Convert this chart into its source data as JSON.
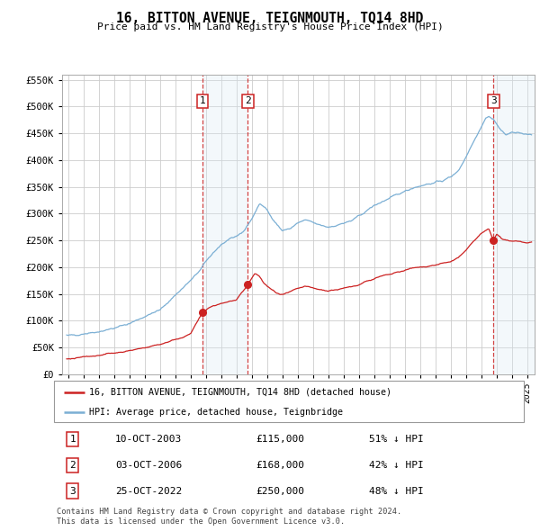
{
  "title": "16, BITTON AVENUE, TEIGNMOUTH, TQ14 8HD",
  "subtitle": "Price paid vs. HM Land Registry's House Price Index (HPI)",
  "background_color": "#ffffff",
  "plot_bg_color": "#ffffff",
  "grid_color": "#cccccc",
  "hpi_color": "#7bafd4",
  "price_color": "#cc2222",
  "legend_label_price": "16, BITTON AVENUE, TEIGNMOUTH, TQ14 8HD (detached house)",
  "legend_label_hpi": "HPI: Average price, detached house, Teignbridge",
  "transactions": [
    {
      "num": 1,
      "date": "10-OCT-2003",
      "price": 115000,
      "pct": "51% ↓ HPI",
      "x_year": 2003.78
    },
    {
      "num": 2,
      "date": "03-OCT-2006",
      "price": 168000,
      "pct": "42% ↓ HPI",
      "x_year": 2006.75
    },
    {
      "num": 3,
      "date": "25-OCT-2022",
      "price": 250000,
      "pct": "48% ↓ HPI",
      "x_year": 2022.82
    }
  ],
  "footnote1": "Contains HM Land Registry data © Crown copyright and database right 2024.",
  "footnote2": "This data is licensed under the Open Government Licence v3.0.",
  "ylim": [
    0,
    560000
  ],
  "yticks": [
    0,
    50000,
    100000,
    150000,
    200000,
    250000,
    300000,
    350000,
    400000,
    450000,
    500000,
    550000
  ],
  "xlim_start": 1994.6,
  "xlim_end": 2025.5,
  "shade_color": "#d8e8f5"
}
